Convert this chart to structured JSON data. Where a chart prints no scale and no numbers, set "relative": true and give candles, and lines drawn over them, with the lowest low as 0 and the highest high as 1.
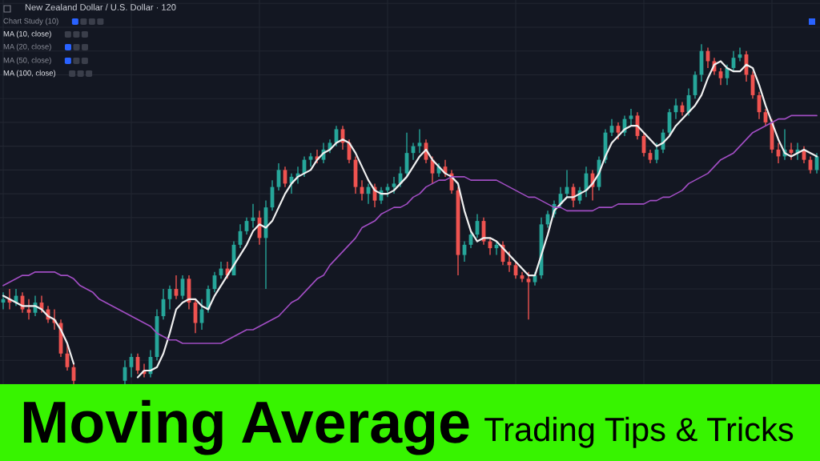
{
  "chart_data": {
    "type": "candlestick",
    "title": "Moving Average",
    "subtitle": "Trading Tips & Tricks",
    "annotations": [
      "New Zealand Dollar / U.S. Dollar · 120",
      "Chart Study (10)",
      "MA (10, close)",
      "MA (20, close)",
      "MA (50, close)",
      "MA (100, close)"
    ],
    "relative": true,
    "grid": true,
    "tick_labels": false,
    "categories": [
      null,
      null,
      null,
      null,
      null,
      null,
      null,
      null,
      null,
      null,
      null,
      null,
      null,
      null,
      null,
      null,
      null,
      null,
      null,
      null,
      null,
      null,
      null,
      null,
      null,
      null,
      null,
      null,
      null,
      null,
      null,
      null,
      null,
      null,
      null,
      null,
      null,
      null,
      null,
      null,
      null,
      null,
      null,
      null,
      null,
      null,
      null,
      null,
      null,
      null,
      null,
      null,
      null,
      null,
      null,
      null,
      null,
      null,
      null,
      null,
      null,
      null,
      null,
      null,
      null,
      null,
      null,
      null,
      null,
      null,
      null,
      null,
      null,
      null,
      null,
      null,
      null,
      null,
      null,
      null,
      null,
      null,
      null,
      null,
      null,
      null,
      null,
      null,
      null,
      null,
      null,
      null,
      null,
      null,
      null,
      null,
      null,
      null,
      null,
      null,
      null,
      null,
      null,
      null,
      null,
      null,
      null,
      null,
      null,
      null,
      null,
      null,
      null,
      null,
      null,
      null,
      null,
      null,
      null,
      null,
      null,
      null,
      null,
      null,
      null,
      null,
      null,
      null
    ],
    "ohlc": [
      [
        0.24,
        0.27,
        0.22,
        0.25
      ],
      [
        0.25,
        0.28,
        0.22,
        0.24
      ],
      [
        0.24,
        0.28,
        0.23,
        0.26
      ],
      [
        0.26,
        0.27,
        0.21,
        0.22
      ],
      [
        0.22,
        0.25,
        0.19,
        0.21
      ],
      [
        0.21,
        0.26,
        0.2,
        0.24
      ],
      [
        0.24,
        0.26,
        0.21,
        0.22
      ],
      [
        0.22,
        0.23,
        0.18,
        0.19
      ],
      [
        0.19,
        0.22,
        0.16,
        0.18
      ],
      [
        0.18,
        0.19,
        0.08,
        0.09
      ],
      [
        0.09,
        0.12,
        0.04,
        0.05
      ],
      [
        0.05,
        0.06,
        0.0,
        0.01
      ],
      null,
      null,
      null,
      null,
      null,
      null,
      null,
      [
        0.01,
        0.07,
        0.0,
        0.05
      ],
      [
        0.05,
        0.09,
        0.02,
        0.08
      ],
      [
        0.08,
        0.09,
        0.03,
        0.04
      ],
      [
        0.04,
        0.06,
        0.02,
        0.03
      ],
      [
        0.03,
        0.1,
        0.02,
        0.08
      ],
      [
        0.08,
        0.22,
        0.07,
        0.2
      ],
      [
        0.2,
        0.28,
        0.19,
        0.25
      ],
      [
        0.25,
        0.29,
        0.22,
        0.28
      ],
      [
        0.28,
        0.32,
        0.25,
        0.26
      ],
      [
        0.26,
        0.32,
        0.25,
        0.31
      ],
      [
        0.31,
        0.32,
        0.22,
        0.24
      ],
      [
        0.24,
        0.25,
        0.15,
        0.18
      ],
      [
        0.18,
        0.25,
        0.16,
        0.22
      ],
      [
        0.22,
        0.29,
        0.21,
        0.28
      ],
      [
        0.28,
        0.33,
        0.27,
        0.32
      ],
      [
        0.32,
        0.36,
        0.31,
        0.34
      ],
      [
        0.34,
        0.36,
        0.31,
        0.32
      ],
      [
        0.32,
        0.42,
        0.32,
        0.41
      ],
      [
        0.41,
        0.47,
        0.4,
        0.45
      ],
      [
        0.45,
        0.49,
        0.44,
        0.48
      ],
      [
        0.48,
        0.53,
        0.46,
        0.49
      ],
      [
        0.49,
        0.51,
        0.41,
        0.43
      ],
      [
        0.43,
        0.54,
        0.28,
        0.52
      ],
      [
        0.52,
        0.6,
        0.51,
        0.58
      ],
      [
        0.58,
        0.65,
        0.57,
        0.63
      ],
      [
        0.63,
        0.64,
        0.58,
        0.59
      ],
      [
        0.59,
        0.62,
        0.56,
        0.61
      ],
      [
        0.61,
        0.64,
        0.59,
        0.62
      ],
      [
        0.62,
        0.67,
        0.61,
        0.66
      ],
      [
        0.66,
        0.68,
        0.64,
        0.67
      ],
      [
        0.67,
        0.69,
        0.65,
        0.66
      ],
      [
        0.66,
        0.71,
        0.65,
        0.69
      ],
      [
        0.69,
        0.72,
        0.68,
        0.71
      ],
      [
        0.71,
        0.76,
        0.7,
        0.75
      ],
      [
        0.75,
        0.76,
        0.69,
        0.71
      ],
      [
        0.71,
        0.72,
        0.65,
        0.66
      ],
      [
        0.66,
        0.67,
        0.56,
        0.58
      ],
      [
        0.58,
        0.6,
        0.54,
        0.56
      ],
      [
        0.56,
        0.59,
        0.53,
        0.58
      ],
      [
        0.58,
        0.59,
        0.52,
        0.54
      ],
      [
        0.54,
        0.58,
        0.53,
        0.57
      ],
      [
        0.57,
        0.59,
        0.55,
        0.58
      ],
      [
        0.58,
        0.61,
        0.56,
        0.59
      ],
      [
        0.59,
        0.64,
        0.58,
        0.62
      ],
      [
        0.62,
        0.74,
        0.61,
        0.68
      ],
      [
        0.68,
        0.71,
        0.66,
        0.7
      ],
      [
        0.7,
        0.75,
        0.68,
        0.71
      ],
      [
        0.71,
        0.72,
        0.65,
        0.66
      ],
      [
        0.66,
        0.67,
        0.59,
        0.62
      ],
      [
        0.62,
        0.65,
        0.61,
        0.64
      ],
      [
        0.64,
        0.66,
        0.61,
        0.62
      ],
      [
        0.62,
        0.63,
        0.56,
        0.57
      ],
      [
        0.57,
        0.58,
        0.32,
        0.38
      ],
      [
        0.38,
        0.42,
        0.36,
        0.41
      ],
      [
        0.41,
        0.45,
        0.4,
        0.44
      ],
      [
        0.44,
        0.5,
        0.43,
        0.48
      ],
      [
        0.48,
        0.49,
        0.41,
        0.42
      ],
      [
        0.42,
        0.43,
        0.38,
        0.4
      ],
      [
        0.4,
        0.42,
        0.38,
        0.41
      ],
      [
        0.41,
        0.42,
        0.35,
        0.36
      ],
      [
        0.36,
        0.39,
        0.33,
        0.35
      ],
      [
        0.35,
        0.36,
        0.31,
        0.32
      ],
      [
        0.32,
        0.33,
        0.3,
        0.31
      ],
      [
        0.31,
        0.33,
        0.19,
        0.3
      ],
      [
        0.3,
        0.33,
        0.29,
        0.32
      ],
      [
        0.32,
        0.49,
        0.31,
        0.47
      ],
      [
        0.47,
        0.51,
        0.46,
        0.5
      ],
      [
        0.5,
        0.54,
        0.49,
        0.53
      ],
      [
        0.53,
        0.58,
        0.52,
        0.56
      ],
      [
        0.56,
        0.63,
        0.55,
        0.58
      ],
      [
        0.58,
        0.59,
        0.52,
        0.54
      ],
      [
        0.54,
        0.58,
        0.53,
        0.57
      ],
      [
        0.57,
        0.64,
        0.55,
        0.62
      ],
      [
        0.62,
        0.63,
        0.54,
        0.58
      ],
      [
        0.58,
        0.67,
        0.57,
        0.66
      ],
      [
        0.66,
        0.75,
        0.65,
        0.74
      ],
      [
        0.74,
        0.78,
        0.73,
        0.76
      ],
      [
        0.76,
        0.77,
        0.72,
        0.74
      ],
      [
        0.74,
        0.79,
        0.73,
        0.78
      ],
      [
        0.78,
        0.81,
        0.76,
        0.79
      ],
      [
        0.79,
        0.8,
        0.72,
        0.73
      ],
      [
        0.73,
        0.74,
        0.67,
        0.68
      ],
      [
        0.68,
        0.69,
        0.65,
        0.66
      ],
      [
        0.66,
        0.71,
        0.65,
        0.69
      ],
      [
        0.69,
        0.75,
        0.68,
        0.74
      ],
      [
        0.74,
        0.81,
        0.73,
        0.8
      ],
      [
        0.8,
        0.84,
        0.78,
        0.82
      ],
      [
        0.82,
        0.83,
        0.79,
        0.8
      ],
      [
        0.8,
        0.87,
        0.79,
        0.85
      ],
      [
        0.85,
        0.92,
        0.84,
        0.91
      ],
      [
        0.91,
        1.0,
        0.89,
        0.98
      ],
      [
        0.98,
        0.99,
        0.93,
        0.95
      ],
      [
        0.95,
        0.96,
        0.91,
        0.92
      ],
      [
        0.92,
        0.93,
        0.88,
        0.9
      ],
      [
        0.9,
        0.94,
        0.88,
        0.93
      ],
      [
        0.93,
        0.98,
        0.92,
        0.96
      ],
      [
        0.96,
        0.99,
        0.95,
        0.97
      ],
      [
        0.97,
        0.98,
        0.89,
        0.91
      ],
      [
        0.91,
        0.92,
        0.84,
        0.85
      ],
      [
        0.85,
        0.86,
        0.78,
        0.8
      ],
      [
        0.8,
        0.81,
        0.76,
        0.77
      ],
      [
        0.77,
        0.78,
        0.68,
        0.69
      ],
      [
        0.69,
        0.71,
        0.65,
        0.67
      ],
      [
        0.67,
        0.75,
        0.66,
        0.69
      ],
      [
        0.69,
        0.71,
        0.66,
        0.68
      ],
      [
        0.68,
        0.71,
        0.66,
        0.69
      ],
      [
        0.69,
        0.7,
        0.65,
        0.66
      ],
      [
        0.66,
        0.67,
        0.62,
        0.63
      ],
      [
        0.63,
        0.68,
        0.62,
        0.67
      ]
    ],
    "colors": [
      "#26a69a",
      "#ef5350",
      "#26a69a",
      "#ef5350",
      "#ef5350",
      "#26a69a",
      "#ef5350",
      "#ef5350",
      "#ef5350",
      "#ef5350",
      "#ef5350",
      "#ef5350",
      null,
      null,
      null,
      null,
      null,
      null,
      null,
      "#26a69a",
      "#26a69a",
      "#ef5350",
      "#ef5350",
      "#26a69a",
      "#26a69a",
      "#26a69a",
      "#26a69a",
      "#ef5350",
      "#26a69a",
      "#ef5350",
      "#ef5350",
      "#26a69a",
      "#26a69a",
      "#26a69a",
      "#26a69a",
      "#ef5350",
      "#26a69a",
      "#26a69a",
      "#26a69a",
      "#26a69a",
      "#ef5350",
      "#26a69a",
      "#26a69a",
      "#26a69a",
      "#ef5350",
      "#26a69a",
      "#26a69a",
      "#26a69a",
      "#26a69a",
      "#ef5350",
      "#26a69a",
      "#26a69a",
      "#26a69a",
      "#ef5350",
      "#ef5350",
      "#ef5350",
      "#ef5350",
      "#26a69a",
      "#ef5350",
      "#26a69a",
      "#26a69a",
      "#26a69a",
      "#26a69a",
      "#26a69a",
      "#26a69a",
      "#26a69a",
      "#ef5350",
      "#ef5350",
      "#26a69a",
      "#ef5350",
      "#ef5350",
      "#ef5350",
      "#26a69a",
      "#26a69a",
      "#26a69a",
      "#ef5350",
      "#ef5350",
      "#26a69a",
      "#ef5350",
      "#ef5350",
      "#ef5350",
      "#ef5350",
      "#ef5350",
      "#26a69a",
      "#26a69a",
      "#26a69a",
      "#26a69a",
      "#26a69a",
      "#26a69a",
      "#ef5350",
      "#26a69a",
      "#26a69a",
      "#ef5350",
      "#26a69a",
      "#26a69a",
      "#26a69a",
      "#ef5350",
      "#26a69a",
      "#26a69a",
      "#ef5350",
      "#ef5350",
      "#ef5350",
      "#26a69a",
      "#26a69a",
      "#26a69a",
      "#26a69a",
      "#ef5350",
      "#26a69a",
      "#26a69a",
      "#26a69a",
      "#ef5350",
      "#ef5350",
      "#ef5350",
      "#26a69a",
      "#26a69a",
      "#26a69a",
      "#ef5350",
      "#ef5350",
      "#ef5350",
      "#ef5350",
      "#ef5350",
      "#ef5350",
      "#26a69a",
      "#ef5350",
      "#26a69a",
      "#ef5350",
      "#ef5350",
      "#26a69a"
    ],
    "series": [
      {
        "type": "line",
        "color": "#f0f0f0",
        "values": [
          0.26,
          0.25,
          0.24,
          0.23,
          0.23,
          0.23,
          0.22,
          0.2,
          0.19,
          0.16,
          0.12,
          0.06,
          null,
          null,
          null,
          null,
          null,
          null,
          null,
          null,
          null,
          0.02,
          0.04,
          0.04,
          0.05,
          0.09,
          0.15,
          0.22,
          0.24,
          0.25,
          0.25,
          0.23,
          0.22,
          0.26,
          0.29,
          0.32,
          0.35,
          0.38,
          0.41,
          0.45,
          0.47,
          0.46,
          0.48,
          0.52,
          0.56,
          0.59,
          0.61,
          0.62,
          0.63,
          0.66,
          0.68,
          0.69,
          0.71,
          0.72,
          0.71,
          0.68,
          0.64,
          0.6,
          0.57,
          0.56,
          0.56,
          0.57,
          0.59,
          0.61,
          0.64,
          0.67,
          0.69,
          0.66,
          0.64,
          0.62,
          0.61,
          0.59,
          0.51,
          0.45,
          0.42,
          0.43,
          0.43,
          0.42,
          0.4,
          0.38,
          0.36,
          0.34,
          0.32,
          0.32,
          0.38,
          0.44,
          0.51,
          0.53,
          0.55,
          0.55,
          0.56,
          0.57,
          0.59,
          0.62,
          0.67,
          0.71,
          0.73,
          0.75,
          0.76,
          0.76,
          0.74,
          0.72,
          0.7,
          0.71,
          0.73,
          0.76,
          0.78,
          0.8,
          0.82,
          0.85,
          0.9,
          0.94,
          0.95,
          0.93,
          0.92,
          0.92,
          0.94,
          0.93,
          0.88,
          0.82,
          0.77,
          0.72,
          0.68,
          0.67,
          0.68,
          0.69,
          0.68,
          0.67
        ]
      },
      {
        "type": "line",
        "color": "#a04dc2",
        "values": [
          0.29,
          0.3,
          0.31,
          0.32,
          0.32,
          0.33,
          0.33,
          0.33,
          0.33,
          0.32,
          0.32,
          0.31,
          0.29,
          0.28,
          0.27,
          0.25,
          0.24,
          0.23,
          0.22,
          0.21,
          0.2,
          0.19,
          0.18,
          0.17,
          0.15,
          0.14,
          0.13,
          0.13,
          0.12,
          0.12,
          0.12,
          0.12,
          0.12,
          0.12,
          0.12,
          0.13,
          0.14,
          0.15,
          0.16,
          0.16,
          0.17,
          0.18,
          0.19,
          0.2,
          0.22,
          0.24,
          0.25,
          0.27,
          0.29,
          0.31,
          0.32,
          0.35,
          0.37,
          0.39,
          0.41,
          0.43,
          0.46,
          0.47,
          0.48,
          0.5,
          0.51,
          0.52,
          0.52,
          0.53,
          0.55,
          0.56,
          0.58,
          0.59,
          0.6,
          0.6,
          0.61,
          0.61,
          0.61,
          0.6,
          0.6,
          0.6,
          0.6,
          0.6,
          0.59,
          0.58,
          0.57,
          0.56,
          0.55,
          0.55,
          0.54,
          0.53,
          0.52,
          0.52,
          0.51,
          0.51,
          0.51,
          0.51,
          0.51,
          0.52,
          0.52,
          0.52,
          0.53,
          0.53,
          0.53,
          0.53,
          0.53,
          0.54,
          0.54,
          0.55,
          0.55,
          0.56,
          0.57,
          0.59,
          0.6,
          0.61,
          0.62,
          0.64,
          0.66,
          0.67,
          0.68,
          0.7,
          0.72,
          0.74,
          0.75,
          0.76,
          0.77,
          0.78,
          0.78,
          0.79,
          0.79,
          0.79,
          0.79,
          0.79
        ]
      }
    ]
  }
}
